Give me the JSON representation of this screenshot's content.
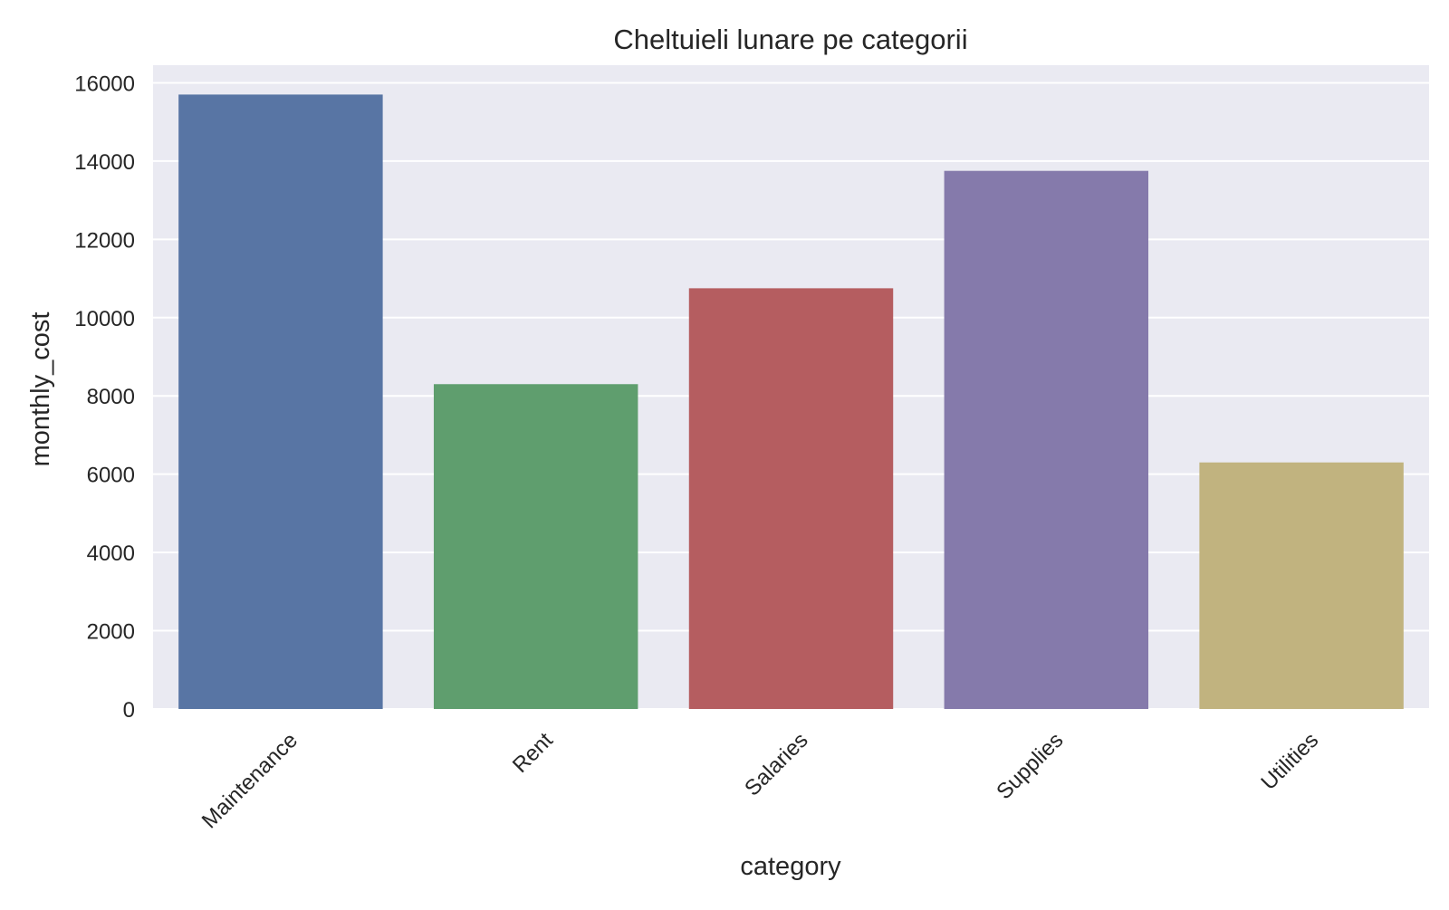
{
  "chart_data": {
    "type": "bar",
    "title": "Cheltuieli lunare pe categorii",
    "xlabel": "category",
    "ylabel": "monthly_cost",
    "categories": [
      "Maintenance",
      "Rent",
      "Salaries",
      "Supplies",
      "Utilities"
    ],
    "values": [
      15700,
      8300,
      10750,
      13750,
      6300
    ],
    "colors": [
      "#5875a4",
      "#5f9e6e",
      "#b55d60",
      "#857aab",
      "#c1b37f"
    ],
    "ylim": [
      0,
      16450
    ],
    "yticks": [
      0,
      2000,
      4000,
      6000,
      8000,
      10000,
      12000,
      14000,
      16000
    ],
    "ytick_labels": [
      "0",
      "2000",
      "4000",
      "6000",
      "8000",
      "10000",
      "12000",
      "14000",
      "16000"
    ],
    "grid": true,
    "background_color": "#eaeaf2",
    "grid_color": "#ffffff"
  }
}
